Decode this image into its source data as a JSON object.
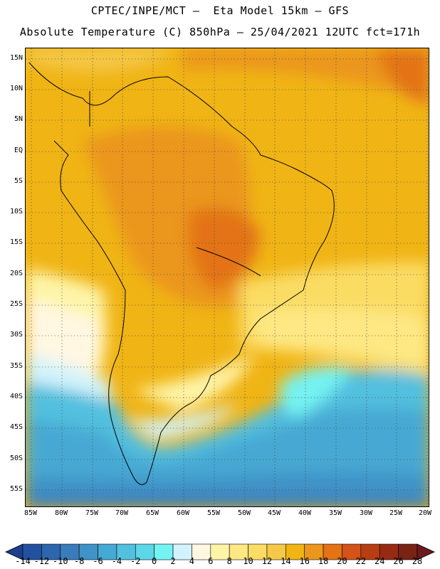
{
  "header": {
    "line1": "CPTEC/INPE/MCT –  Eta Model 15km – GFS",
    "line2": "Absolute Temperature (C) 850hPa – 25/04/2021 12UTC fct=171h"
  },
  "map": {
    "region": "South America",
    "lat_labels": [
      "15N",
      "10N",
      "5N",
      "EQ",
      "5S",
      "10S",
      "15S",
      "20S",
      "25S",
      "30S",
      "35S",
      "40S",
      "45S",
      "50S",
      "55S"
    ],
    "lon_labels": [
      "85W",
      "80W",
      "75W",
      "70W",
      "65W",
      "60W",
      "55W",
      "50W",
      "45W",
      "40W",
      "35W",
      "30W",
      "25W",
      "20W"
    ],
    "lat_range": [
      17,
      -57.5
    ],
    "lon_range": [
      -86,
      -19.5
    ]
  },
  "colorbar": {
    "labels": [
      "-14",
      "-12",
      "-10",
      "-8",
      "-6",
      "-4",
      "-2",
      "0",
      "2",
      "4",
      "6",
      "8",
      "10",
      "12",
      "14",
      "16",
      "18",
      "20",
      "22",
      "24",
      "26",
      "28"
    ],
    "colors": [
      "#1d3f8c",
      "#22529f",
      "#2d66ad",
      "#3a7cbb",
      "#3f93c7",
      "#46a9d3",
      "#52c0df",
      "#5dd6e8",
      "#75f2f2",
      "#d2f3fb",
      "#fff7e2",
      "#fef4a8",
      "#fde884",
      "#fbdc64",
      "#f5c849",
      "#f0b415",
      "#eb961d",
      "#e37315",
      "#d3531a",
      "#b73e12",
      "#962b14",
      "#792315",
      "#6d1a1e"
    ]
  }
}
